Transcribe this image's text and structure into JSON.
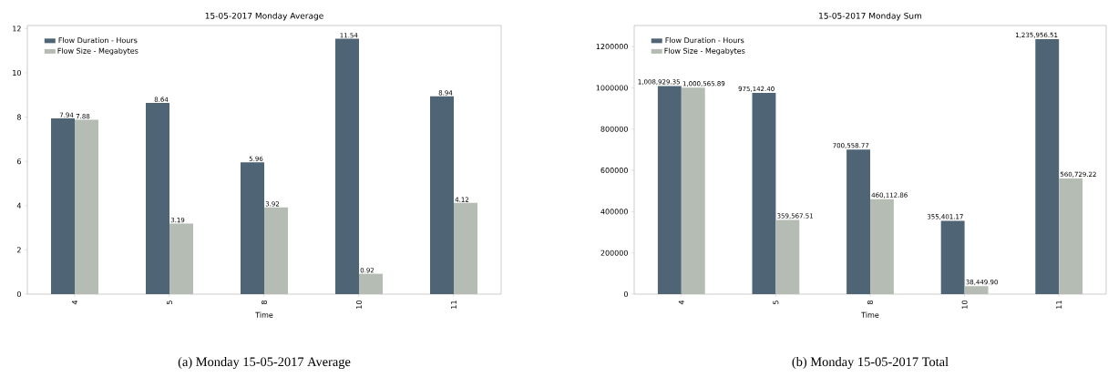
{
  "chart_data": [
    {
      "type": "bar",
      "title": "15-05-2017 Monday Average",
      "xlabel": "Time",
      "categories": [
        "4",
        "5",
        "8",
        "10",
        "11"
      ],
      "series": [
        {
          "name": "Flow Duration - Hours",
          "color": "#4f6475",
          "values": [
            7.94,
            8.64,
            5.96,
            11.54,
            8.94
          ]
        },
        {
          "name": "Flow Size - Megabytes",
          "color": "#b4bcb3",
          "values": [
            7.88,
            3.19,
            3.92,
            0.92,
            4.12
          ]
        }
      ],
      "data_labels": true,
      "ylim": [
        0,
        12.14
      ],
      "yticks": [
        0,
        2,
        4,
        6,
        8,
        10,
        12
      ],
      "legend": "top left",
      "annotations": [
        "(a) Monday 15-05-2017 Average"
      ]
    },
    {
      "type": "bar",
      "title": "15-05-2017 Monday Sum",
      "xlabel": "Time",
      "categories": [
        "4",
        "5",
        "8",
        "10",
        "11"
      ],
      "series": [
        {
          "name": "Flow Duration - Hours",
          "color": "#4f6475",
          "values": [
            1008929.35,
            975142.4,
            700558.77,
            355401.17,
            1235956.51
          ],
          "value_labels": [
            "1,008,929.35",
            "975,142.40",
            "700,558.77",
            "355,401.17",
            "1,235,956.51"
          ]
        },
        {
          "name": "Flow Size - Megabytes",
          "color": "#b4bcb3",
          "values": [
            1000565.89,
            359567.51,
            460112.86,
            38449.9,
            560729.22
          ],
          "value_labels": [
            "1,000,565.89",
            "359,567.51",
            "460,112.86",
            "38,449.90",
            "560,729.22"
          ]
        }
      ],
      "ylim": [
        0,
        1302000
      ],
      "yticks": [
        0,
        200000,
        400000,
        600000,
        800000,
        1000000,
        1200000
      ],
      "legend": "top left",
      "annotations": [
        "(b) Monday 15-05-2017 Total"
      ]
    }
  ]
}
